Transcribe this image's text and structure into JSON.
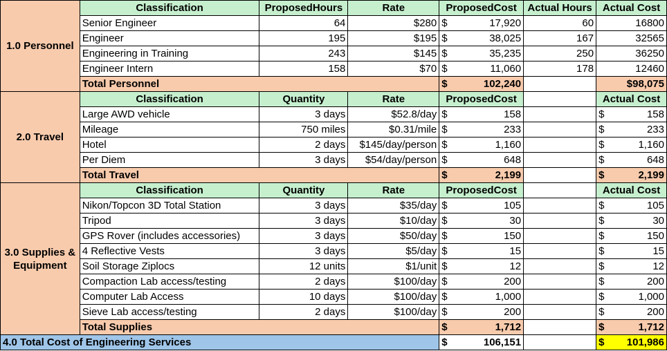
{
  "personnel": {
    "section": "1.0 Personnel",
    "headers": [
      "Classification",
      "ProposedHours",
      "Rate",
      "ProposedCost",
      "Actual Hours",
      "Actual Cost"
    ],
    "rows": [
      {
        "name": "Senior Engineer",
        "hours": "64",
        "rate": "$280",
        "cost": "17,920",
        "actual_hours": "60",
        "actual_cost": "16800"
      },
      {
        "name": "Engineer",
        "hours": "195",
        "rate": "$195",
        "cost": "38,025",
        "actual_hours": "167",
        "actual_cost": "32565"
      },
      {
        "name": "Engineering in Training",
        "hours": "243",
        "rate": "$145",
        "cost": "35,235",
        "actual_hours": "250",
        "actual_cost": "36250"
      },
      {
        "name": "Engineer Intern",
        "hours": "158",
        "rate": "$70",
        "cost": "11,060",
        "actual_hours": "178",
        "actual_cost": "12460"
      }
    ],
    "total_label": "Total Personnel",
    "total_cost": "102,240",
    "total_actual": "$98,075"
  },
  "travel": {
    "section": "2.0 Travel",
    "headers": [
      "Classification",
      "Quantity",
      "Rate",
      "ProposedCost",
      "Actual Cost"
    ],
    "rows": [
      {
        "name": "Large AWD vehicle",
        "qty": "3 days",
        "rate": "$52.8/day",
        "cost": "158",
        "actual": "158"
      },
      {
        "name": "Mileage",
        "qty": "750 miles",
        "rate": "$0.31/mile",
        "cost": "233",
        "actual": "233"
      },
      {
        "name": "Hotel",
        "qty": "2 days",
        "rate": "$145/day/person",
        "cost": "1,160",
        "actual": "1,160"
      },
      {
        "name": "Per Diem",
        "qty": "3 days",
        "rate": "$54/day/person",
        "cost": "648",
        "actual": "648"
      }
    ],
    "total_label": "Total Travel",
    "total_cost": "2,199",
    "total_actual": "2,199"
  },
  "supplies": {
    "section": "3.0 Supplies & Equipment",
    "headers": [
      "Classification",
      "Quantity",
      "Rate",
      "ProposedCost",
      "Actual Cost"
    ],
    "rows": [
      {
        "name": "Nikon/Topcon 3D Total Station",
        "qty": "3 days",
        "rate": "$35/day",
        "cost": "105",
        "actual": "105"
      },
      {
        "name": "Tripod",
        "qty": "3 days",
        "rate": "$10/day",
        "cost": "30",
        "actual": "30"
      },
      {
        "name": "GPS Rover (includes accessories)",
        "qty": "3 days",
        "rate": "$50/day",
        "cost": "150",
        "actual": "150"
      },
      {
        "name": "4 Reflective Vests",
        "qty": "3 days",
        "rate": "$5/day",
        "cost": "15",
        "actual": "15"
      },
      {
        "name": "Soil Storage Ziplocs",
        "qty": "12 units",
        "rate": "$1/unit",
        "cost": "12",
        "actual": "12"
      },
      {
        "name": "Compaction Lab access/testing",
        "qty": "2 days",
        "rate": "$100/day",
        "cost": "200",
        "actual": "200"
      },
      {
        "name": "Computer Lab Access",
        "qty": "10 days",
        "rate": "$100/day",
        "cost": "1,000",
        "actual": "1,000"
      },
      {
        "name": "Sieve Lab access/testing",
        "qty": "2 days",
        "rate": "$100/day",
        "cost": "200",
        "actual": "200"
      }
    ],
    "total_label": "Total Supplies",
    "total_cost": "1,712",
    "total_actual": "1,712"
  },
  "grand": {
    "label": "4.0 Total Cost of Engineering Services",
    "cost": "106,151",
    "actual": "101,986"
  },
  "currency_symbol": "$"
}
